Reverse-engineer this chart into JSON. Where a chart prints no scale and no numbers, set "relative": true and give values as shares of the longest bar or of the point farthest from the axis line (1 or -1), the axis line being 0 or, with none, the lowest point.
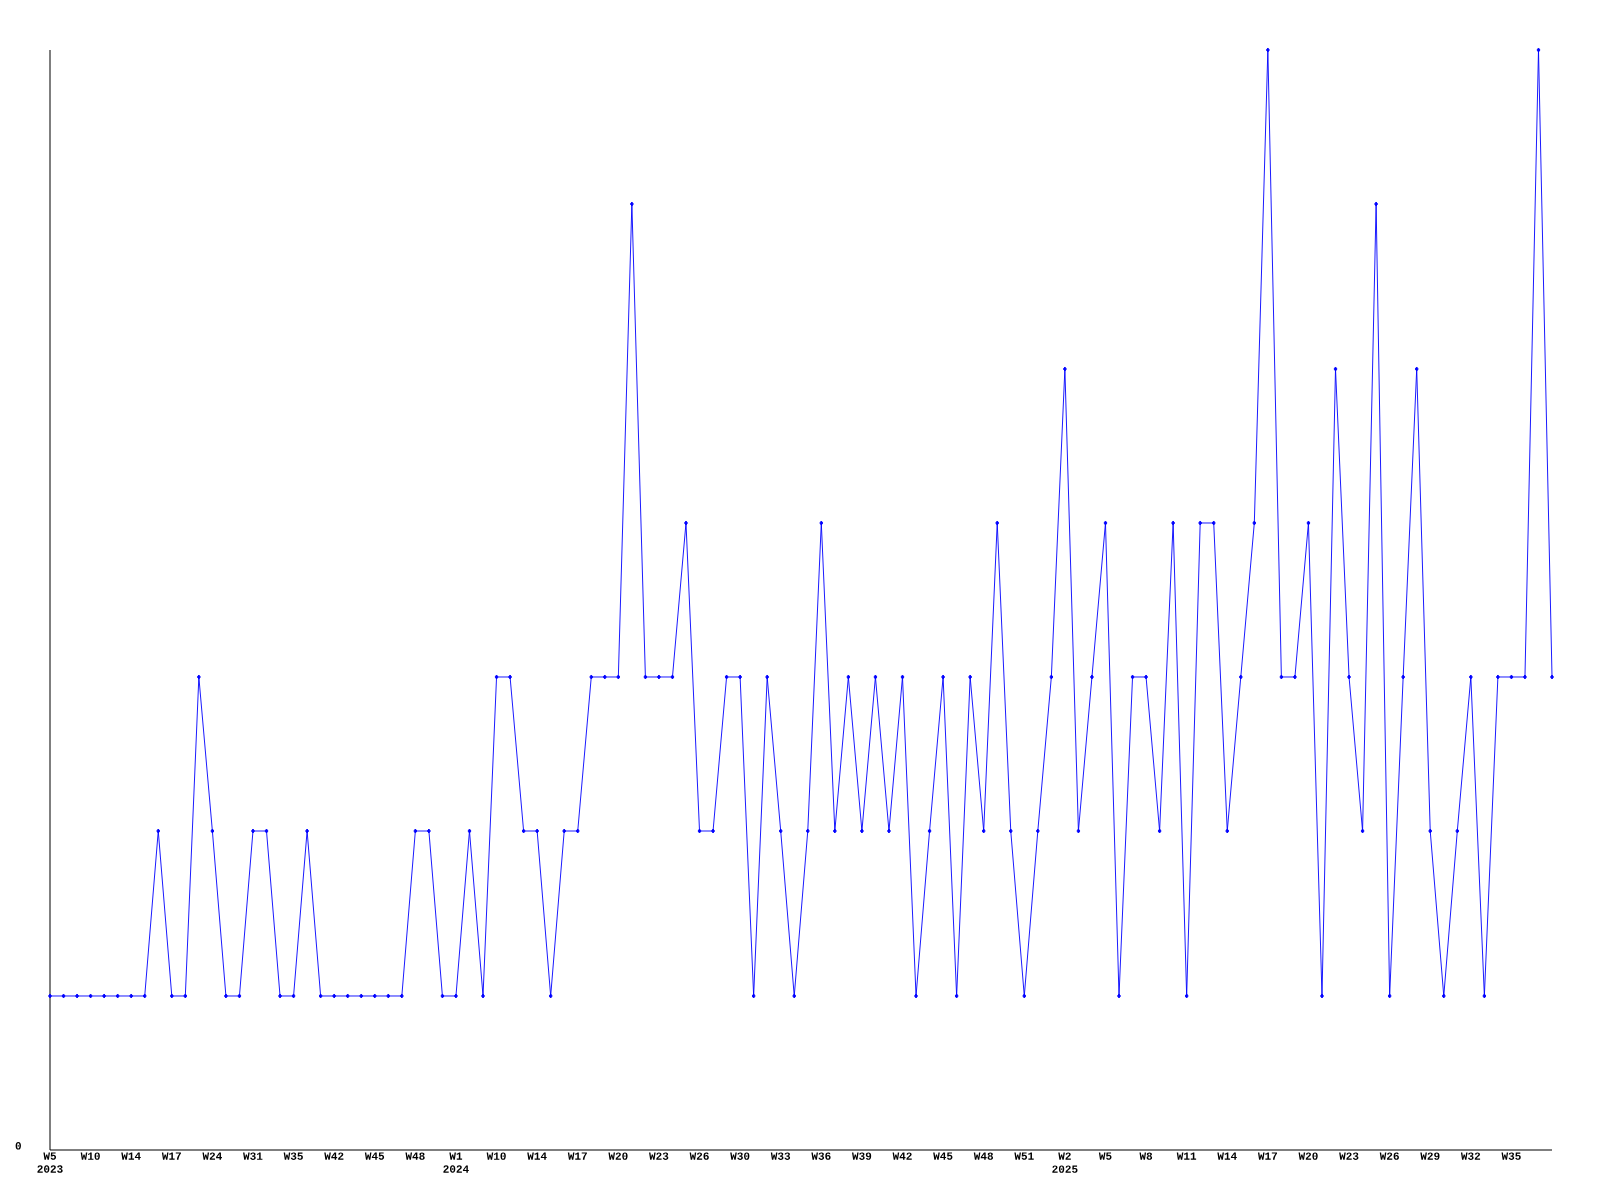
{
  "chart_data": {
    "type": "line",
    "relative": true,
    "color": "#0000ff",
    "marker": "diamond",
    "annotations": [
      "0"
    ],
    "categories": [
      "W5 2023",
      null,
      null,
      "W10",
      null,
      null,
      "W14",
      null,
      null,
      "W17",
      null,
      null,
      "W24",
      null,
      null,
      "W31",
      null,
      null,
      "W35",
      null,
      null,
      "W42",
      null,
      null,
      "W45",
      null,
      null,
      "W48",
      null,
      null,
      "W1 2024",
      null,
      null,
      "W10",
      null,
      null,
      "W14",
      null,
      null,
      "W17",
      null,
      null,
      "W20",
      null,
      null,
      "W23",
      null,
      null,
      "W26",
      null,
      null,
      "W30",
      null,
      null,
      "W33",
      null,
      null,
      "W36",
      null,
      null,
      "W39",
      null,
      null,
      "W42",
      null,
      null,
      "W45",
      null,
      null,
      "W48",
      null,
      null,
      "W51",
      null,
      null,
      "W2 2025",
      null,
      null,
      "W5",
      null,
      null,
      "W8",
      null,
      null,
      "W11",
      null,
      null,
      "W14",
      null,
      null,
      "W17",
      null,
      null,
      "W20",
      null,
      null,
      "W23",
      null,
      null,
      "W26",
      null,
      null,
      "W29",
      null,
      null,
      "W32",
      null,
      null,
      "W35",
      null,
      null,
      null
    ],
    "values": [
      0.14,
      0.14,
      0.14,
      0.14,
      0.14,
      0.14,
      0.14,
      0.14,
      0.29,
      0.14,
      0.14,
      0.43,
      0.29,
      0.14,
      0.14,
      0.29,
      0.29,
      0.14,
      0.14,
      0.29,
      0.14,
      0.14,
      0.14,
      0.14,
      0.14,
      0.14,
      0.14,
      0.29,
      0.29,
      0.14,
      0.14,
      0.29,
      0.14,
      0.43,
      0.43,
      0.29,
      0.29,
      0.14,
      0.29,
      0.29,
      0.43,
      0.43,
      0.43,
      0.86,
      0.43,
      0.43,
      0.43,
      0.57,
      0.29,
      0.29,
      0.43,
      0.43,
      0.14,
      0.43,
      0.29,
      0.14,
      0.29,
      0.57,
      0.29,
      0.43,
      0.29,
      0.43,
      0.29,
      0.43,
      0.14,
      0.29,
      0.43,
      0.14,
      0.43,
      0.29,
      0.57,
      0.29,
      0.14,
      0.29,
      0.43,
      0.71,
      0.29,
      0.43,
      0.57,
      0.14,
      0.43,
      0.43,
      0.29,
      0.57,
      0.14,
      0.57,
      0.57,
      0.29,
      0.43,
      0.57,
      1,
      0.43,
      0.43,
      0.57,
      0.14,
      0.71,
      0.43,
      0.29,
      0.86,
      0.14,
      0.43,
      0.71,
      0.29,
      0.14,
      0.29,
      0.43,
      0.14,
      0.43,
      0.43,
      0.43,
      1,
      0.43
    ]
  }
}
